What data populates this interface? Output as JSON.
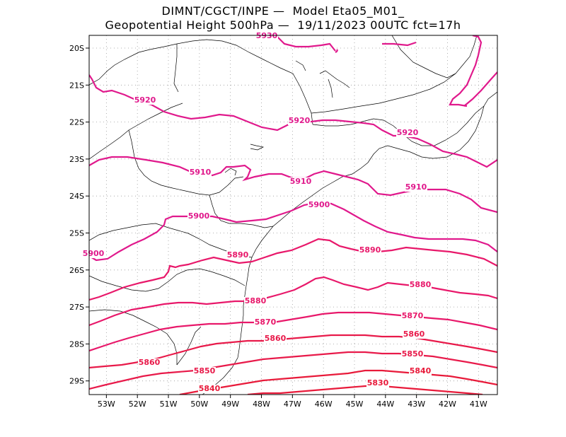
{
  "title": {
    "line1": "DIMNT/CGCT/INPE —  Model Eta05_M01_",
    "line2": "Geopotential Height 500hPa —  19/11/2023 00UTC fct=17h"
  },
  "map": {
    "lon_ticks": [
      {
        "lon": -53,
        "label": "53W"
      },
      {
        "lon": -52,
        "label": "52W"
      },
      {
        "lon": -51,
        "label": "51W"
      },
      {
        "lon": -50,
        "label": "50W"
      },
      {
        "lon": -49,
        "label": "49W"
      },
      {
        "lon": -48,
        "label": "48W"
      },
      {
        "lon": -47,
        "label": "47W"
      },
      {
        "lon": -46,
        "label": "46W"
      },
      {
        "lon": -45,
        "label": "45W"
      },
      {
        "lon": -44,
        "label": "44W"
      },
      {
        "lon": -43,
        "label": "43W"
      },
      {
        "lon": -42,
        "label": "42W"
      },
      {
        "lon": -41,
        "label": "41W"
      }
    ],
    "lat_ticks": [
      {
        "lat": -20,
        "label": "20S"
      },
      {
        "lat": -21,
        "label": "21S"
      },
      {
        "lat": -22,
        "label": "22S"
      },
      {
        "lat": -23,
        "label": "23S"
      },
      {
        "lat": -24,
        "label": "24S"
      },
      {
        "lat": -25,
        "label": "25S"
      },
      {
        "lat": -26,
        "label": "26S"
      },
      {
        "lat": -27,
        "label": "27S"
      },
      {
        "lat": -28,
        "label": "28S"
      },
      {
        "lat": -29,
        "label": "29S"
      }
    ],
    "contour_labels": [
      {
        "text": "5930",
        "color": "#e0198c"
      },
      {
        "text": "5920",
        "color": "#e0198c"
      },
      {
        "text": "5920",
        "color": "#e0198c"
      },
      {
        "text": "5920",
        "color": "#e0198c"
      },
      {
        "text": "5910",
        "color": "#e0198c"
      },
      {
        "text": "5910",
        "color": "#e0198c"
      },
      {
        "text": "5910",
        "color": "#e0198c"
      },
      {
        "text": "5900",
        "color": "#e0198c"
      },
      {
        "text": "5900",
        "color": "#e0198c"
      },
      {
        "text": "5900",
        "color": "#e0198c"
      },
      {
        "text": "5890",
        "color": "#e8186a"
      },
      {
        "text": "5890",
        "color": "#e8186a"
      },
      {
        "text": "5880",
        "color": "#e8186a"
      },
      {
        "text": "5880",
        "color": "#e8186a"
      },
      {
        "text": "5870",
        "color": "#e8186a"
      },
      {
        "text": "5870",
        "color": "#e8186a"
      },
      {
        "text": "5860",
        "color": "#e81a4a"
      },
      {
        "text": "5860",
        "color": "#e81a4a"
      },
      {
        "text": "5860",
        "color": "#e81a4a"
      },
      {
        "text": "5850",
        "color": "#e81a4a"
      },
      {
        "text": "5850",
        "color": "#e81a4a"
      },
      {
        "text": "5840",
        "color": "#e81a3a"
      },
      {
        "text": "5840",
        "color": "#e81a3a"
      },
      {
        "text": "5830",
        "color": "#e81a3a"
      }
    ]
  }
}
